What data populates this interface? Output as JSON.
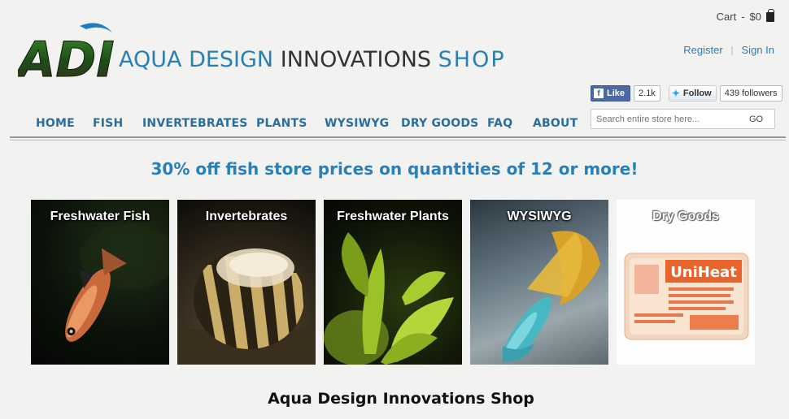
{
  "header": {
    "logo_text": "ADI",
    "title_part1": "AQUA DESIGN",
    "title_part2": "INNOVATIONS",
    "title_part3": "SHOP",
    "cart": {
      "label": "Cart",
      "separator": "-",
      "amount": "$0"
    },
    "account": {
      "register": "Register",
      "sign_in": "Sign In",
      "separator": "|"
    },
    "social": {
      "facebook_like": "Like",
      "facebook_count": "2.1k",
      "twitter_follow": "Follow",
      "twitter_followers": "439 followers"
    },
    "search": {
      "placeholder": "Search entire store here...",
      "button": "GO"
    }
  },
  "nav": {
    "items": [
      "HOME",
      "FISH",
      "INVERTEBRATES",
      "PLANTS",
      "WYSIWYG",
      "DRY GOODS",
      "FAQ",
      "ABOUT"
    ]
  },
  "promo": {
    "text": "30% off fish store prices on quantities of 12 or more!"
  },
  "categories": [
    {
      "label": "Freshwater Fish"
    },
    {
      "label": "Invertebrates"
    },
    {
      "label": "Freshwater Plants"
    },
    {
      "label": "WYSIWYG"
    },
    {
      "label": "Dry Goods",
      "product_name": "UniHeat"
    }
  ],
  "footer": {
    "title": "Aqua Design Innovations Shop"
  },
  "colors": {
    "brand_blue": "#2a7fb3",
    "nav_blue": "#2a6e9c",
    "background": "#f2f2f0"
  }
}
